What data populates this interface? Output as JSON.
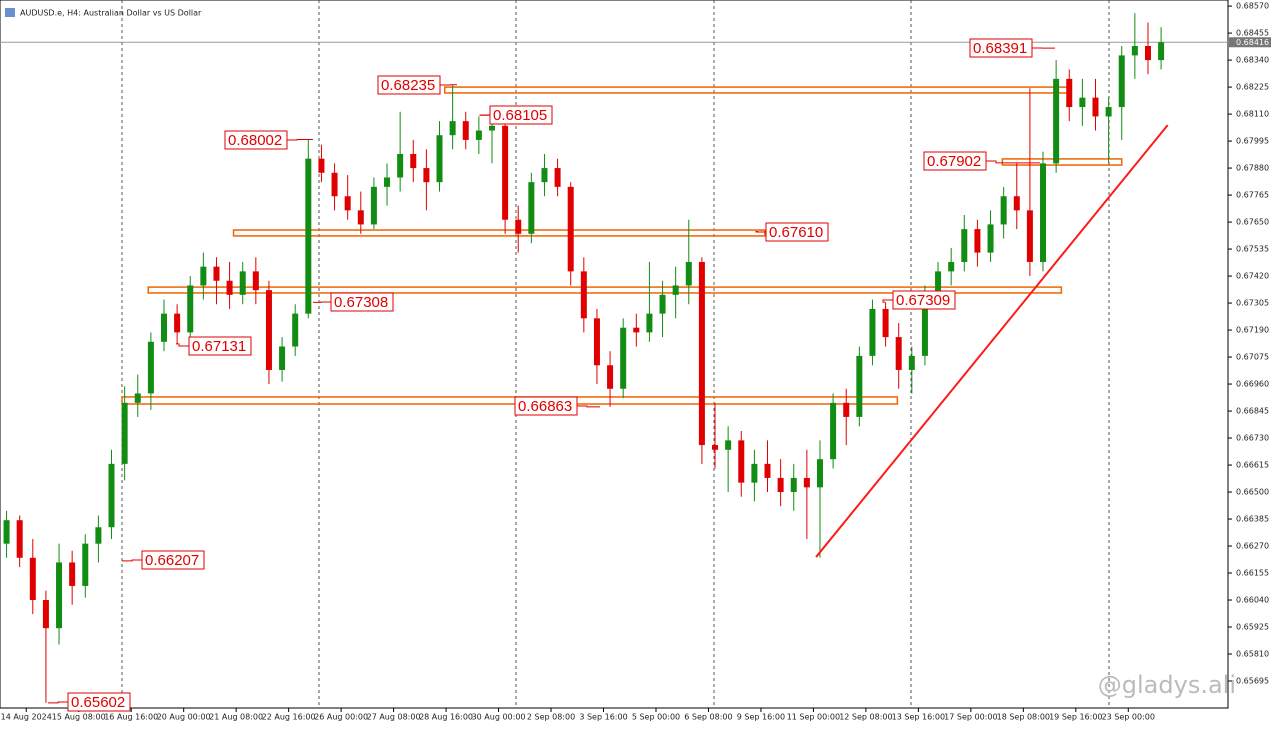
{
  "chart_data": {
    "type": "candlestick",
    "title": "AUDUSD.e, H4:  Australian Dollar vs US Dollar",
    "watermark": "@gladys.ali",
    "bull_color": "#138c13",
    "bear_color": "#e00000",
    "zone_color": "#f06400",
    "trend_color": "#ff1a1a",
    "xlim": [
      -0.5,
      93.1
    ],
    "ylim": [
      0.6558,
      0.68596
    ],
    "xticks": [
      {
        "value": 1.5,
        "label": "14 Aug 2024"
      },
      {
        "value": 5.5,
        "label": "15 Aug 08:00"
      },
      {
        "value": 9.5,
        "label": "16 Aug 16:00"
      },
      {
        "value": 13.5,
        "label": "20 Aug 00:00"
      },
      {
        "value": 17.5,
        "label": "21 Aug 08:00"
      },
      {
        "value": 21.5,
        "label": "22 Aug 16:00"
      },
      {
        "value": 25.5,
        "label": "26 Aug 00:00"
      },
      {
        "value": 29.5,
        "label": "27 Aug 08:00"
      },
      {
        "value": 33.5,
        "label": "28 Aug 16:00"
      },
      {
        "value": 37.5,
        "label": "30 Aug 00:00"
      },
      {
        "value": 41.5,
        "label": "2 Sep 08:00"
      },
      {
        "value": 45.5,
        "label": "3 Sep 16:00"
      },
      {
        "value": 49.5,
        "label": "5 Sep 00:00"
      },
      {
        "value": 53.5,
        "label": "6 Sep 08:00"
      },
      {
        "value": 57.5,
        "label": "9 Sep 16:00"
      },
      {
        "value": 61.5,
        "label": "11 Sep 00:00"
      },
      {
        "value": 65.5,
        "label": "12 Sep 08:00"
      },
      {
        "value": 69.5,
        "label": "13 Sep 16:00"
      },
      {
        "value": 73.5,
        "label": "17 Sep 00:00"
      },
      {
        "value": 77.5,
        "label": "18 Sep 08:00"
      },
      {
        "value": 81.5,
        "label": "19 Sep 16:00"
      },
      {
        "value": 85.5,
        "label": "23 Sep 00:00"
      }
    ],
    "yticks": [
      {
        "value": 0.6857,
        "label": "0.68570"
      },
      {
        "value": 0.68455,
        "label": "0.68455"
      },
      {
        "value": 0.6834,
        "label": "0.68340"
      },
      {
        "value": 0.68225,
        "label": "0.68225"
      },
      {
        "value": 0.6811,
        "label": "0.68110"
      },
      {
        "value": 0.67995,
        "label": "0.67995"
      },
      {
        "value": 0.6788,
        "label": "0.67880"
      },
      {
        "value": 0.67765,
        "label": "0.67765"
      },
      {
        "value": 0.6765,
        "label": "0.67650"
      },
      {
        "value": 0.67535,
        "label": "0.67535"
      },
      {
        "value": 0.6742,
        "label": "0.67420"
      },
      {
        "value": 0.67305,
        "label": "0.67305"
      },
      {
        "value": 0.6719,
        "label": "0.67190"
      },
      {
        "value": 0.67075,
        "label": "0.67075"
      },
      {
        "value": 0.6696,
        "label": "0.66960"
      },
      {
        "value": 0.66845,
        "label": "0.66845"
      },
      {
        "value": 0.6673,
        "label": "0.66730"
      },
      {
        "value": 0.66615,
        "label": "0.66615"
      },
      {
        "value": 0.665,
        "label": "0.66500"
      },
      {
        "value": 0.66385,
        "label": "0.66385"
      },
      {
        "value": 0.6627,
        "label": "0.66270"
      },
      {
        "value": 0.66155,
        "label": "0.66155"
      },
      {
        "value": 0.6604,
        "label": "0.66040"
      },
      {
        "value": 0.65925,
        "label": "0.65925"
      },
      {
        "value": 0.6581,
        "label": "0.65810"
      },
      {
        "value": 0.65695,
        "label": "0.65695"
      }
    ],
    "open": [
      0.6628,
      0.6638,
      0.6622,
      0.6604,
      0.6592,
      0.662,
      0.661,
      0.6628,
      0.6635,
      0.6662,
      0.6688,
      0.6692,
      0.6714,
      0.6726,
      0.6718,
      0.6738,
      0.6746,
      0.674,
      0.6734,
      0.6744,
      0.6736,
      0.6702,
      0.6712,
      0.6726,
      0.6792,
      0.6786,
      0.6776,
      0.677,
      0.6764,
      0.678,
      0.6784,
      0.6794,
      0.6788,
      0.6782,
      0.6802,
      0.6808,
      0.68,
      0.6804,
      0.6806,
      0.6766,
      0.676,
      0.6782,
      0.6788,
      0.678,
      0.6744,
      0.6724,
      0.6704,
      0.6694,
      0.672,
      0.6718,
      0.6726,
      0.6734,
      0.6738,
      0.6748,
      0.667,
      0.6668,
      0.6672,
      0.6654,
      0.6662,
      0.6656,
      0.665,
      0.6656,
      0.6652,
      0.6664,
      0.6688,
      0.6682,
      0.6708,
      0.6728,
      0.6716,
      0.6702,
      0.6708,
      0.6734,
      0.6744,
      0.6748,
      0.6762,
      0.6752,
      0.6764,
      0.6776,
      0.677,
      0.6748,
      0.679,
      0.6826,
      0.6814,
      0.6818,
      0.681,
      0.6814,
      0.6836,
      0.684,
      0.6834
    ],
    "high": [
      0.6642,
      0.664,
      0.663,
      0.6608,
      0.6628,
      0.6625,
      0.6632,
      0.664,
      0.6668,
      0.6695,
      0.67,
      0.6718,
      0.6732,
      0.673,
      0.6742,
      0.6752,
      0.675,
      0.6748,
      0.6748,
      0.675,
      0.674,
      0.6716,
      0.673,
      0.68002,
      0.6798,
      0.679,
      0.6785,
      0.6778,
      0.6784,
      0.679,
      0.6812,
      0.68,
      0.6796,
      0.6808,
      0.68235,
      0.6812,
      0.681,
      0.68105,
      0.6808,
      0.6772,
      0.6786,
      0.6794,
      0.6792,
      0.6782,
      0.675,
      0.6728,
      0.671,
      0.6724,
      0.6726,
      0.6748,
      0.674,
      0.6746,
      0.6766,
      0.675,
      0.6688,
      0.6678,
      0.6676,
      0.6668,
      0.6672,
      0.6664,
      0.6662,
      0.6668,
      0.6672,
      0.6692,
      0.6694,
      0.6712,
      0.6732,
      0.67309,
      0.6722,
      0.6712,
      0.6738,
      0.6748,
      0.6754,
      0.6768,
      0.6766,
      0.677,
      0.678,
      0.679,
      0.6822,
      0.6795,
      0.6834,
      0.683,
      0.6826,
      0.6826,
      0.6818,
      0.684,
      0.6854,
      0.685,
      0.6848
    ],
    "low": [
      0.6622,
      0.6618,
      0.6598,
      0.65602,
      0.6585,
      0.6602,
      0.6605,
      0.662,
      0.663,
      0.6655,
      0.6682,
      0.6685,
      0.671,
      0.67131,
      0.6714,
      0.6732,
      0.673,
      0.6728,
      0.673,
      0.673,
      0.6696,
      0.6697,
      0.6708,
      0.6724,
      0.6782,
      0.677,
      0.6766,
      0.676,
      0.6762,
      0.6772,
      0.6778,
      0.6782,
      0.677,
      0.6778,
      0.6796,
      0.6796,
      0.6794,
      0.679,
      0.676,
      0.6752,
      0.6756,
      0.6776,
      0.6776,
      0.6738,
      0.6718,
      0.6696,
      0.66863,
      0.669,
      0.6712,
      0.6714,
      0.6716,
      0.6724,
      0.673,
      0.6662,
      0.666,
      0.665,
      0.6648,
      0.6646,
      0.665,
      0.6644,
      0.6642,
      0.663,
      0.6622,
      0.666,
      0.667,
      0.6678,
      0.6704,
      0.6712,
      0.6694,
      0.6692,
      0.6704,
      0.673,
      0.6738,
      0.6744,
      0.6746,
      0.6748,
      0.6758,
      0.6762,
      0.6742,
      0.6744,
      0.6786,
      0.6808,
      0.6806,
      0.6804,
      0.679,
      0.68,
      0.6826,
      0.6828,
      0.683
    ],
    "close": [
      0.6638,
      0.6622,
      0.6604,
      0.6592,
      0.662,
      0.661,
      0.6628,
      0.6635,
      0.6662,
      0.6688,
      0.6692,
      0.6714,
      0.6726,
      0.6718,
      0.6738,
      0.6746,
      0.674,
      0.6734,
      0.6744,
      0.6736,
      0.6702,
      0.6712,
      0.6726,
      0.6792,
      0.6786,
      0.6776,
      0.677,
      0.6764,
      0.678,
      0.6784,
      0.6794,
      0.6788,
      0.6782,
      0.6802,
      0.6808,
      0.68,
      0.6804,
      0.6806,
      0.6766,
      0.676,
      0.6782,
      0.6788,
      0.678,
      0.6744,
      0.6724,
      0.6704,
      0.6694,
      0.672,
      0.6718,
      0.6726,
      0.6734,
      0.6738,
      0.6748,
      0.667,
      0.6668,
      0.6672,
      0.6654,
      0.6662,
      0.6656,
      0.665,
      0.6656,
      0.6652,
      0.6664,
      0.6688,
      0.6682,
      0.6708,
      0.6728,
      0.6716,
      0.6702,
      0.6708,
      0.6734,
      0.6744,
      0.6748,
      0.6762,
      0.6752,
      0.6764,
      0.6776,
      0.677,
      0.6748,
      0.679,
      0.6826,
      0.6814,
      0.6818,
      0.681,
      0.6814,
      0.6836,
      0.684,
      0.6834,
      0.68416
    ],
    "current_price": {
      "value": 0.68416,
      "label": "0.68416"
    },
    "zones": [
      {
        "from": 33.4,
        "to": 81.1,
        "top": 0.68225,
        "bottom": 0.682
      },
      {
        "from": 75.9,
        "to": 85.0,
        "top": 0.67919,
        "bottom": 0.67893
      },
      {
        "from": 17.3,
        "to": 57.8,
        "top": 0.67616,
        "bottom": 0.67591
      },
      {
        "from": 10.8,
        "to": 80.4,
        "top": 0.67373,
        "bottom": 0.67348
      },
      {
        "from": 8.8,
        "to": 67.9,
        "top": 0.66905,
        "bottom": 0.66875
      }
    ],
    "trendline": {
      "x": [
        61.7,
        88.5
      ],
      "y": [
        0.66223,
        0.68063
      ]
    },
    "annotations": [
      {
        "value": 0.68391,
        "label": "0.68391"
      },
      {
        "value": 0.68235,
        "label": "0.68235"
      },
      {
        "value": 0.68105,
        "label": "0.68105"
      },
      {
        "value": 0.68002,
        "label": "0.68002"
      },
      {
        "value": 0.67902,
        "label": "0.67902"
      },
      {
        "value": 0.6761,
        "label": "0.67610"
      },
      {
        "value": 0.67308,
        "label": "0.67308"
      },
      {
        "value": 0.67309,
        "label": "0.67309"
      },
      {
        "value": 0.67131,
        "label": "0.67131"
      },
      {
        "value": 0.66863,
        "label": "0.66863"
      },
      {
        "value": 0.66207,
        "label": "0.66207"
      },
      {
        "value": 0.65602,
        "label": "0.65602"
      }
    ]
  }
}
